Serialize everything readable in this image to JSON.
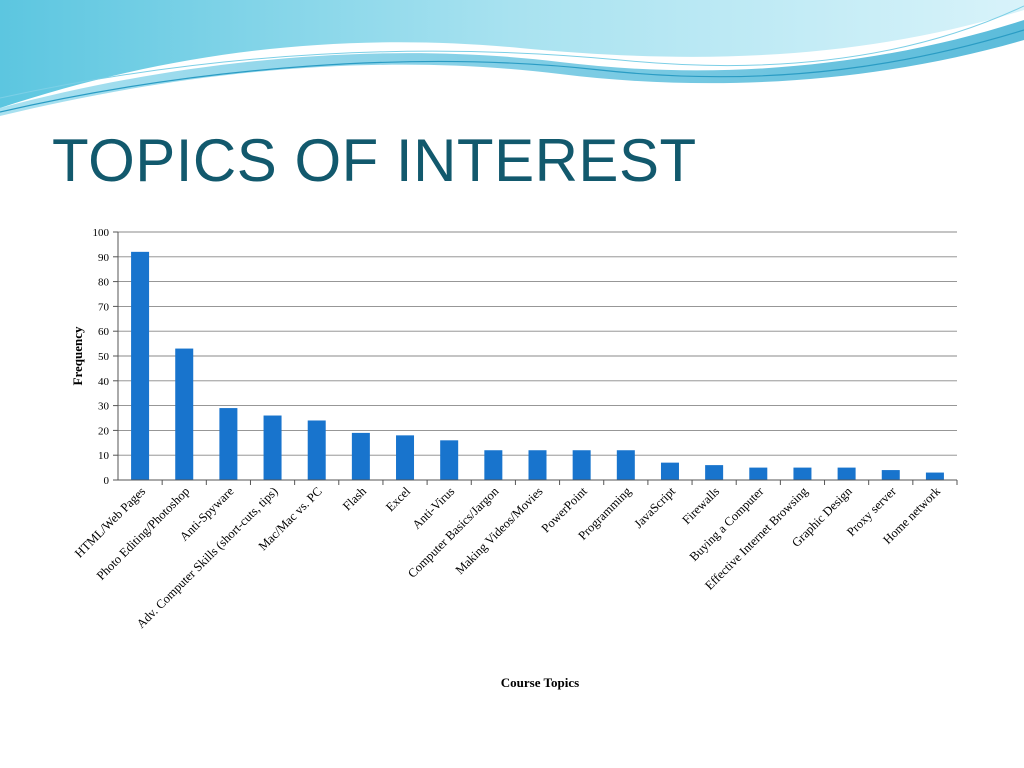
{
  "slide": {
    "title": "TOPICS OF INTEREST"
  },
  "colors": {
    "bar": "#1874cd",
    "title": "#12596d",
    "wave_light": "#b8e8f4",
    "wave_dark": "#4bb8d8"
  },
  "chart_data": {
    "type": "bar",
    "title": "",
    "xlabel": "Course Topics",
    "ylabel": "Frequency",
    "ylim": [
      0,
      100
    ],
    "yticks": [
      0,
      10,
      20,
      30,
      40,
      50,
      60,
      70,
      80,
      90,
      100
    ],
    "grid": true,
    "legend": "none",
    "categories": [
      "HTML/Web Pages",
      "Photo Editing/Photoshop",
      "Anti-Spyware",
      "Adv. Computer Skills (short-cuts, tips)",
      "Mac/Mac vs. PC",
      "Flash",
      "Excel",
      "Anti-Virus",
      "Computer Basics/Jargon",
      "Making Videos/Movies",
      "PowerPoint",
      "Programming",
      "JavaScript",
      "Firewalls",
      "Buying a Computer",
      "Effective Internet Browsing",
      "Graphic Design",
      "Proxy server",
      "Home network"
    ],
    "values": [
      92,
      53,
      29,
      26,
      24,
      19,
      18,
      16,
      12,
      12,
      12,
      12,
      7,
      6,
      5,
      5,
      5,
      4,
      3
    ]
  }
}
